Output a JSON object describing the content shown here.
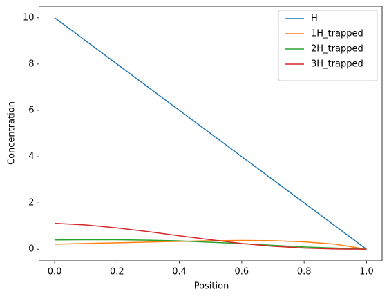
{
  "chart_data": {
    "type": "line",
    "xlabel": "Position",
    "ylabel": "Concentration",
    "x": [
      0,
      0.1,
      0.2,
      0.3,
      0.4,
      0.5,
      0.6,
      0.7,
      0.8,
      0.9,
      1.0
    ],
    "series": [
      {
        "name": "H",
        "color": "#1f77b4",
        "values": [
          10,
          9,
          8,
          7,
          6,
          5,
          4,
          3,
          2,
          1,
          0
        ]
      },
      {
        "name": "1H_trapped",
        "color": "#ff7f0e",
        "values": [
          0.22,
          0.25,
          0.28,
          0.31,
          0.34,
          0.37,
          0.38,
          0.37,
          0.32,
          0.22,
          0
        ]
      },
      {
        "name": "2H_trapped",
        "color": "#2ca02c",
        "values": [
          0.4,
          0.41,
          0.41,
          0.39,
          0.36,
          0.3,
          0.24,
          0.17,
          0.1,
          0.05,
          0
        ]
      },
      {
        "name": "3H_trapped",
        "color": "#d62728",
        "values": [
          1.12,
          1.05,
          0.92,
          0.76,
          0.58,
          0.41,
          0.25,
          0.13,
          0.05,
          0.01,
          0
        ]
      }
    ],
    "xlim": [
      -0.05,
      1.05
    ],
    "xticks": [
      {
        "value": 0,
        "label": "0.0"
      },
      0.2,
      0.4,
      0.6,
      0.8,
      {
        "value": 1,
        "label": "1.0"
      }
    ],
    "ylim": [
      -0.5,
      10.5
    ],
    "yticks": [
      0,
      2,
      4,
      6,
      8,
      10
    ],
    "grid": false,
    "legend": "upper-right"
  }
}
